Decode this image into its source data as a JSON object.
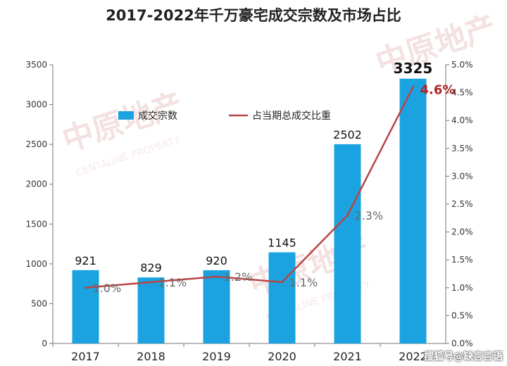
{
  "chart_data": {
    "type": "bar+line",
    "title": "2017-2022年千万豪宅成交宗数及市场占比",
    "categories": [
      "2017",
      "2018",
      "2019",
      "2020",
      "2021",
      "2022"
    ],
    "series": [
      {
        "name": "成交宗数",
        "type": "bar",
        "axis": "left",
        "color": "#1aa3e0",
        "values": [
          921,
          829,
          920,
          1145,
          2502,
          3325
        ],
        "labels": [
          "921",
          "829",
          "920",
          "1145",
          "2502",
          "3325"
        ]
      },
      {
        "name": "占当期总成交比重",
        "type": "line",
        "axis": "right",
        "color": "#b84545",
        "values": [
          1.0,
          1.1,
          1.2,
          1.1,
          2.3,
          4.6
        ],
        "labels": [
          "1.0%",
          "1.1%",
          "1.2%",
          "1.1%",
          "2.3%",
          "4.6%"
        ]
      }
    ],
    "y_left": {
      "min": 0,
      "max": 3500,
      "ticks": [
        "0",
        "500",
        "1000",
        "1500",
        "2000",
        "2500",
        "3000",
        "3500"
      ]
    },
    "y_right": {
      "min": 0,
      "max": 5.0,
      "ticks": [
        "0.0%",
        "0.5%",
        "1.0%",
        "1.5%",
        "2.0%",
        "2.5%",
        "3.0%",
        "3.5%",
        "4.0%",
        "4.5%",
        "5.0%"
      ]
    },
    "grid": false,
    "legend": "top-left"
  },
  "watermark": {
    "brand": "中原地产",
    "brand_en": "CENTALINE PROPERTY"
  },
  "footer": "搜狐号@缺言言语"
}
